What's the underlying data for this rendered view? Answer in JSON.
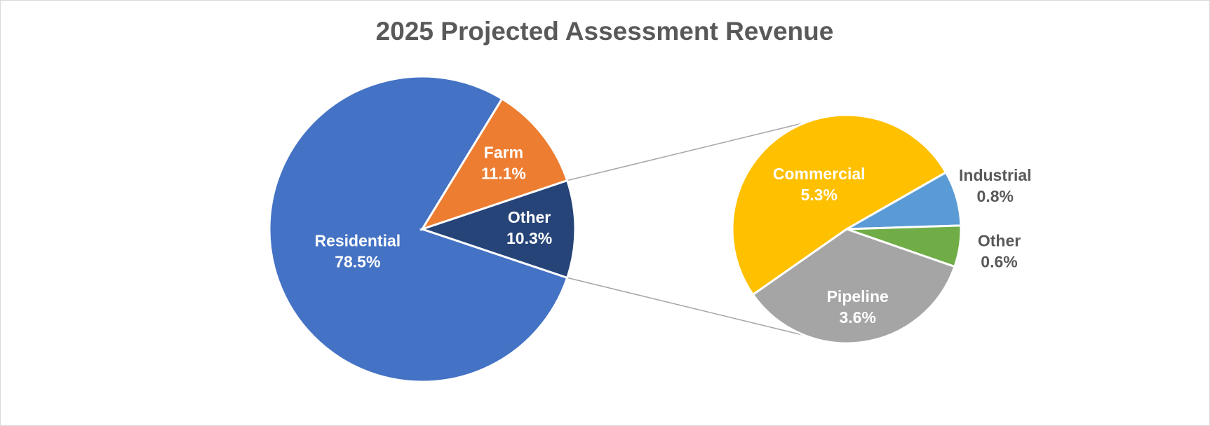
{
  "chart_data": {
    "type": "pie",
    "title": "2025 Projected Assessment Revenue",
    "categories": [
      "Residential",
      "Farm",
      "Other"
    ],
    "values": [
      78.5,
      11.1,
      10.3
    ],
    "value_labels": [
      "78.5%",
      "11.1%",
      "10.3%"
    ],
    "colors": [
      "#4472c4",
      "#ed7d31",
      "#264478"
    ],
    "breakout": {
      "categories": [
        "Commercial",
        "Industrial",
        "Other",
        "Pipeline"
      ],
      "values": [
        5.3,
        0.8,
        0.6,
        3.6
      ],
      "value_labels": [
        "5.3%",
        "0.8%",
        "0.6%",
        "3.6%"
      ],
      "colors": [
        "#ffc000",
        "#5b9bd5",
        "#70ad47",
        "#a5a5a5"
      ]
    }
  }
}
